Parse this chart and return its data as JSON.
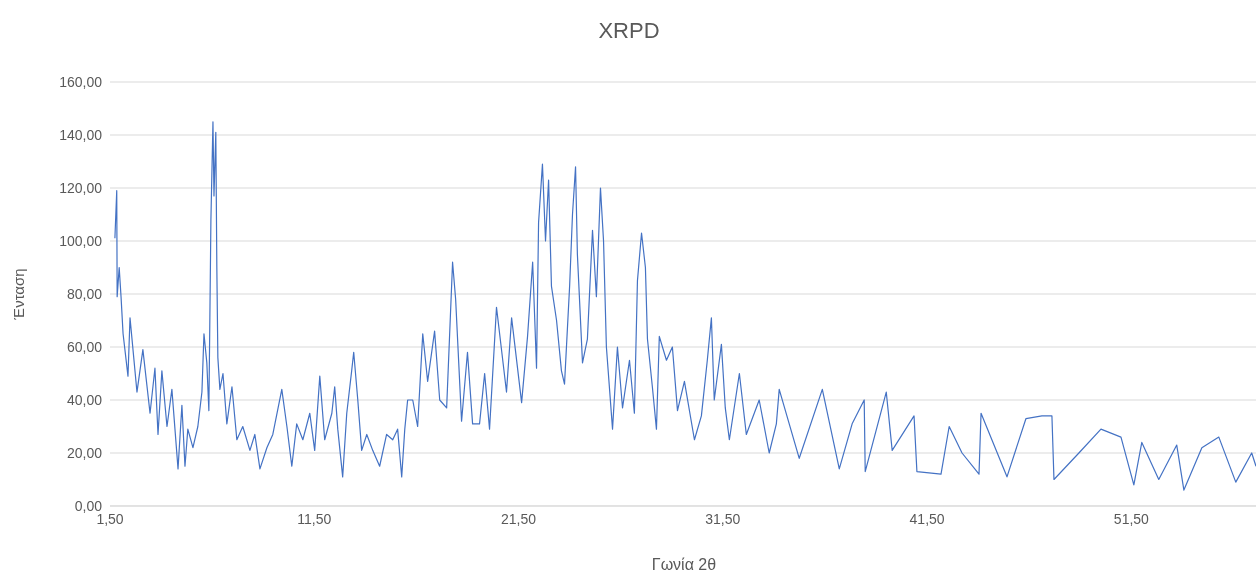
{
  "chart_data": {
    "type": "line",
    "title": "XRPD",
    "xlabel": "Γωνία 2θ",
    "ylabel": "Ένταση",
    "x": [
      1.74,
      1.83,
      1.85,
      1.95,
      2.04,
      2.14,
      2.38,
      2.48,
      2.82,
      3.11,
      3.46,
      3.7,
      3.85,
      4.04,
      4.29,
      4.53,
      4.83,
      5.02,
      5.17,
      5.31,
      5.56,
      5.8,
      6.0,
      6.1,
      6.24,
      6.34,
      6.44,
      6.54,
      6.59,
      6.68,
      6.73,
      6.78,
      6.88,
      7.03,
      7.22,
      7.47,
      7.71,
      8.0,
      8.35,
      8.59,
      8.84,
      9.18,
      9.47,
      9.91,
      10.16,
      10.4,
      10.64,
      10.94,
      11.28,
      11.52,
      11.77,
      12.01,
      12.36,
      12.5,
      12.65,
      12.89,
      13.09,
      13.33,
      13.43,
      13.63,
      13.82,
      14.07,
      14.36,
      14.7,
      15.04,
      15.34,
      15.58,
      15.78,
      15.93,
      16.07,
      16.32,
      16.56,
      16.81,
      17.05,
      17.39,
      17.64,
      17.98,
      18.27,
      18.42,
      18.71,
      19.0,
      19.25,
      19.59,
      19.84,
      20.08,
      20.42,
      20.91,
      21.16,
      21.65,
      21.94,
      22.19,
      22.38,
      22.48,
      22.67,
      22.82,
      22.97,
      23.11,
      23.36,
      23.6,
      23.75,
      24.0,
      24.14,
      24.29,
      24.38,
      24.63,
      24.87,
      25.12,
      25.31,
      25.51,
      25.66,
      25.8,
      26.1,
      26.34,
      26.59,
      26.93,
      27.17,
      27.32,
      27.52,
      27.71,
      27.81,
      28.05,
      28.25,
      28.39,
      28.74,
      29.03,
      29.28,
      29.62,
      30.11,
      30.45,
      30.74,
      30.94,
      31.08,
      31.43,
      31.62,
      31.82,
      32.31,
      32.65,
      33.28,
      33.77,
      34.12,
      34.26,
      35.24,
      36.37,
      37.2,
      37.83,
      38.42,
      38.47,
      39.5,
      39.79,
      40.86,
      41.0,
      42.18,
      42.58,
      43.21,
      44.04,
      44.14,
      45.41,
      46.34,
      47.12,
      47.61,
      47.71,
      48.93,
      50.01,
      50.99,
      51.62,
      52.01,
      52.84,
      53.72,
      54.07,
      54.95,
      55.78,
      56.61,
      57.39,
      57.6
    ],
    "series": [
      {
        "color": "#4472c4",
        "values": [
          101,
          119,
          79,
          90,
          79,
          65,
          49,
          71,
          43,
          59,
          35,
          52,
          27,
          51,
          30,
          44,
          14,
          38,
          15,
          29,
          22,
          30,
          43,
          65,
          54,
          36,
          108,
          145,
          117,
          141,
          90,
          56,
          44,
          50,
          31,
          45,
          25,
          30,
          21,
          27,
          14,
          22,
          27,
          44,
          30,
          15,
          31,
          25,
          35,
          21,
          49,
          25,
          35,
          45,
          29,
          11,
          35,
          51,
          58,
          40,
          21,
          27,
          21,
          15,
          27,
          25,
          29,
          11,
          29,
          40,
          40,
          30,
          65,
          47,
          66,
          40,
          37,
          92,
          78,
          32,
          58,
          31,
          31,
          50,
          29,
          75,
          43,
          71,
          39,
          64,
          92,
          52,
          107,
          129,
          100,
          123,
          83,
          70,
          51,
          46,
          83,
          110,
          128,
          95,
          54,
          63,
          104,
          79,
          120,
          100,
          60,
          29,
          60,
          37,
          55,
          35,
          85,
          103,
          90,
          63,
          45,
          29,
          64,
          55,
          60,
          36,
          47,
          25,
          34,
          55,
          71,
          40,
          61,
          37,
          25,
          50,
          27,
          40,
          20,
          31,
          44,
          18,
          44,
          14,
          31,
          40,
          13,
          43,
          21,
          34,
          13,
          12,
          30,
          20,
          12,
          35,
          11,
          33,
          34,
          34,
          10,
          20,
          29,
          26,
          8,
          24,
          10,
          23,
          6,
          22,
          26,
          9,
          20,
          15
        ]
      }
    ],
    "xlim": [
      1.5,
      57.6
    ],
    "xticks": [
      {
        "value": 1.5,
        "label": "1,50"
      },
      {
        "value": 11.5,
        "label": "11,50"
      },
      {
        "value": 21.5,
        "label": "21,50"
      },
      {
        "value": 31.5,
        "label": "31,50"
      },
      {
        "value": 41.5,
        "label": "41,50"
      },
      {
        "value": 51.5,
        "label": "51,50"
      }
    ],
    "ylim": [
      0,
      160
    ],
    "yticks": [
      {
        "value": 0,
        "label": "0,00"
      },
      {
        "value": 20,
        "label": "20,00"
      },
      {
        "value": 40,
        "label": "40,00"
      },
      {
        "value": 60,
        "label": "60,00"
      },
      {
        "value": 80,
        "label": "80,00"
      },
      {
        "value": 100,
        "label": "100,00"
      },
      {
        "value": 120,
        "label": "120,00"
      },
      {
        "value": 140,
        "label": "140,00"
      },
      {
        "value": 160,
        "label": "160,00"
      }
    ],
    "grid": "y"
  }
}
